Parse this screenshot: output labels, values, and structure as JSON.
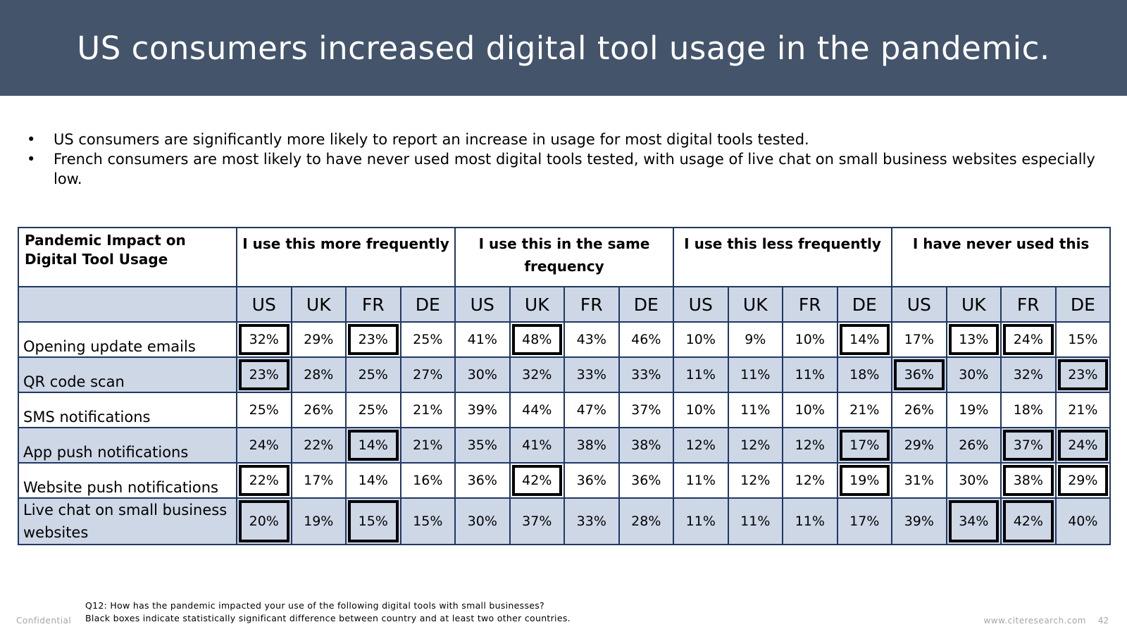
{
  "title": "US consumers increased digital tool usage in the pandemic.",
  "bullets": [
    "US consumers are significantly more likely to report an increase in usage for most digital tools tested.",
    "French consumers are most likely to have never used most digital tools tested, with usage of live chat on small business websites especially low."
  ],
  "table": {
    "corner_label": "Pandemic Impact on Digital Tool Usage",
    "groups": [
      "I use this more frequently",
      "I use this in the same frequency",
      "I use this less frequently",
      "I have never used this"
    ],
    "countries": [
      "US",
      "UK",
      "FR",
      "DE",
      "US",
      "UK",
      "FR",
      "DE",
      "US",
      "UK",
      "FR",
      "DE",
      "US",
      "UK",
      "FR",
      "DE"
    ],
    "rows": [
      {
        "label": "Opening update emails",
        "values": [
          "32%",
          "29%",
          "23%",
          "25%",
          "41%",
          "48%",
          "43%",
          "46%",
          "10%",
          "9%",
          "10%",
          "14%",
          "17%",
          "13%",
          "24%",
          "15%"
        ],
        "significant": [
          true,
          false,
          true,
          false,
          false,
          true,
          false,
          false,
          false,
          false,
          false,
          true,
          false,
          true,
          true,
          false
        ]
      },
      {
        "label": "QR code scan",
        "values": [
          "23%",
          "28%",
          "25%",
          "27%",
          "30%",
          "32%",
          "33%",
          "33%",
          "11%",
          "11%",
          "11%",
          "18%",
          "36%",
          "30%",
          "32%",
          "23%"
        ],
        "significant": [
          true,
          false,
          false,
          false,
          false,
          false,
          false,
          false,
          false,
          false,
          false,
          false,
          true,
          false,
          false,
          true
        ]
      },
      {
        "label": "SMS notifications",
        "values": [
          "25%",
          "26%",
          "25%",
          "21%",
          "39%",
          "44%",
          "47%",
          "37%",
          "10%",
          "11%",
          "10%",
          "21%",
          "26%",
          "19%",
          "18%",
          "21%"
        ],
        "significant": [
          false,
          false,
          false,
          false,
          false,
          false,
          false,
          false,
          false,
          false,
          false,
          false,
          false,
          false,
          false,
          false
        ]
      },
      {
        "label": "App push notifications",
        "values": [
          "24%",
          "22%",
          "14%",
          "21%",
          "35%",
          "41%",
          "38%",
          "38%",
          "12%",
          "12%",
          "12%",
          "17%",
          "29%",
          "26%",
          "37%",
          "24%"
        ],
        "significant": [
          false,
          false,
          true,
          false,
          false,
          false,
          false,
          false,
          false,
          false,
          false,
          true,
          false,
          false,
          true,
          true
        ]
      },
      {
        "label": "Website push notifications",
        "values": [
          "22%",
          "17%",
          "14%",
          "16%",
          "36%",
          "42%",
          "36%",
          "36%",
          "11%",
          "12%",
          "12%",
          "19%",
          "31%",
          "30%",
          "38%",
          "29%"
        ],
        "significant": [
          true,
          false,
          false,
          false,
          false,
          true,
          false,
          false,
          false,
          false,
          false,
          true,
          false,
          false,
          true,
          true
        ]
      },
      {
        "label": "Live chat on small business websites",
        "values": [
          "20%",
          "19%",
          "15%",
          "15%",
          "30%",
          "37%",
          "33%",
          "28%",
          "11%",
          "11%",
          "11%",
          "17%",
          "39%",
          "34%",
          "42%",
          "40%"
        ],
        "significant": [
          true,
          false,
          true,
          false,
          false,
          false,
          false,
          false,
          false,
          false,
          false,
          false,
          false,
          true,
          true,
          false
        ]
      }
    ]
  },
  "footnote": {
    "question": "Q12: How has the pandemic impacted your use of the following digital tools with small businesses?",
    "note": "Black boxes indicate statistically significant difference between country and at least two other countries."
  },
  "footer": {
    "confidential": "Confidential",
    "website": "www.citeresearch.com",
    "page_number": "42"
  },
  "colors": {
    "title_bar": "#44546a",
    "table_border": "#1f3864",
    "shaded_row": "#ced7e6"
  }
}
